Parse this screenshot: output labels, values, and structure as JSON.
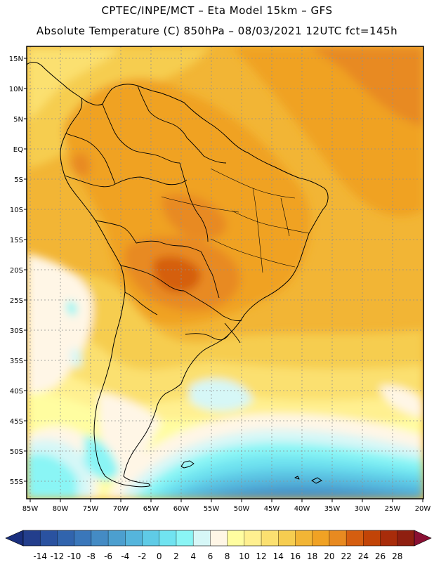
{
  "header": {
    "line1": "CPTEC/INPE/MCT –  Eta Model 15km – GFS",
    "line2": "Absolute Temperature (C) 850hPa – 08/03/2021 12UTC fct=145h"
  },
  "map": {
    "lat_labels": [
      "15N",
      "10N",
      "5N",
      "EQ",
      "5S",
      "10S",
      "15S",
      "20S",
      "25S",
      "30S",
      "35S",
      "40S",
      "45S",
      "50S",
      "55S"
    ],
    "lon_labels": [
      "85W",
      "80W",
      "75W",
      "70W",
      "65W",
      "60W",
      "55W",
      "50W",
      "45W",
      "40W",
      "35W",
      "30W",
      "25W",
      "20W"
    ]
  },
  "colorbar": {
    "labels": [
      "-14",
      "-12",
      "-10",
      "-8",
      "-6",
      "-4",
      "-2",
      "0",
      "2",
      "4",
      "6",
      "8",
      "10",
      "12",
      "14",
      "16",
      "18",
      "20",
      "22",
      "24",
      "26",
      "28"
    ],
    "under_color": "#1a2f7e",
    "over_color": "#8a1033",
    "colors": [
      "#233e8c",
      "#2a52a0",
      "#3164ad",
      "#3a77ba",
      "#448bc4",
      "#4c9fcf",
      "#55b5dc",
      "#5fcbe6",
      "#70e3f0",
      "#8af5f5",
      "#d6f7f7",
      "#fff6e6",
      "#fffda0",
      "#fff090",
      "#fbe070",
      "#f6cd50",
      "#f2b535",
      "#f0a224",
      "#e88a20",
      "#d55e10",
      "#c24407",
      "#a82c0a",
      "#8f1f10"
    ]
  }
}
